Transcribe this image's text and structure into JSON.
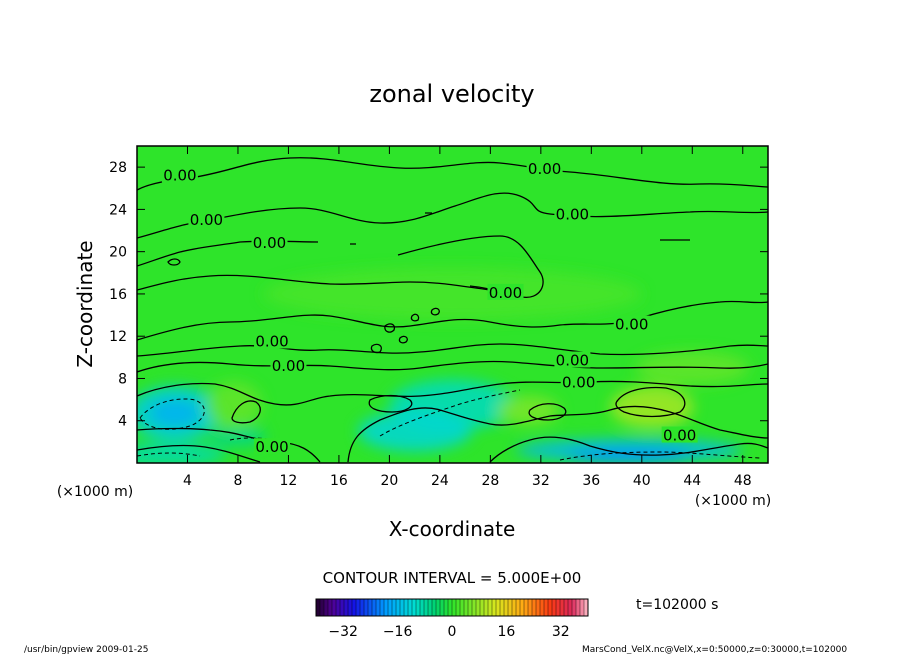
{
  "chart_data": {
    "type": "heatmap",
    "title": "zonal velocity",
    "xlabel": "X-coordinate",
    "ylabel": "Z-coordinate",
    "x_unit_left": "(×1000 m)",
    "x_unit_right": "(×1000 m)",
    "xlim": [
      0,
      50
    ],
    "ylim": [
      0,
      30
    ],
    "x_ticks": [
      4,
      8,
      12,
      16,
      20,
      24,
      28,
      32,
      36,
      40,
      44,
      48
    ],
    "y_ticks": [
      4,
      8,
      12,
      16,
      20,
      24,
      28
    ],
    "contour_interval_text": "CONTOUR INTERVAL = 5.000E+00",
    "time_text": "t=102000 s",
    "contour_labels": [
      {
        "text": "0.00",
        "x": 3.4,
        "y": 27.2
      },
      {
        "text": "0.00",
        "x": 5.5,
        "y": 23.0
      },
      {
        "text": "0.00",
        "x": 10.5,
        "y": 20.8
      },
      {
        "text": "0.00",
        "x": 32.3,
        "y": 27.8
      },
      {
        "text": "0.00",
        "x": 34.5,
        "y": 23.5
      },
      {
        "text": "0.00",
        "x": 29.2,
        "y": 16.1
      },
      {
        "text": "0.00",
        "x": 39.2,
        "y": 13.1
      },
      {
        "text": "0.00",
        "x": 10.7,
        "y": 11.5
      },
      {
        "text": "0.00",
        "x": 12.0,
        "y": 9.2
      },
      {
        "text": "0.00",
        "x": 34.5,
        "y": 9.7
      },
      {
        "text": "0.00",
        "x": 35.0,
        "y": 7.6
      },
      {
        "text": "0.00",
        "x": 43.0,
        "y": 2.6
      },
      {
        "text": "0.00",
        "x": 10.7,
        "y": 1.5
      }
    ],
    "field_blobs": [
      {
        "x": 3.0,
        "y": 4.7,
        "rx": 3.6,
        "ry": 2.6,
        "value": -13
      },
      {
        "x": 3.0,
        "y": 4.7,
        "rx": 2.0,
        "ry": 1.3,
        "value": -17
      },
      {
        "x": 2.5,
        "y": 0.8,
        "rx": 4.5,
        "ry": 1.1,
        "value": -9
      },
      {
        "x": 25.0,
        "y": 5.5,
        "rx": 5.0,
        "ry": 2.4,
        "value": -10
      },
      {
        "x": 22.0,
        "y": 3.0,
        "rx": 4.5,
        "ry": 1.9,
        "value": -12
      },
      {
        "x": 39.0,
        "y": 1.2,
        "rx": 9.0,
        "ry": 1.1,
        "value": -16
      },
      {
        "x": 39.0,
        "y": 0.6,
        "rx": 5.0,
        "ry": 0.7,
        "value": -20
      },
      {
        "x": 8.0,
        "y": 2.5,
        "rx": 2.2,
        "ry": 0.9,
        "value": -7
      },
      {
        "x": 31.0,
        "y": 5.0,
        "rx": 2.5,
        "ry": 1.4,
        "value": 6
      },
      {
        "x": 40.8,
        "y": 5.3,
        "rx": 3.3,
        "ry": 2.0,
        "value": 9
      },
      {
        "x": 7.7,
        "y": 5.5,
        "rx": 2.2,
        "ry": 2.2,
        "value": 4
      },
      {
        "x": 25.0,
        "y": 16.0,
        "rx": 15.0,
        "ry": 2.5,
        "value": 2
      },
      {
        "x": 44.0,
        "y": 9.0,
        "rx": 4.5,
        "ry": 1.6,
        "value": 4
      }
    ],
    "colorbar": {
      "min": -40,
      "max": 40,
      "tick_values": [
        -32,
        -16,
        0,
        16,
        32
      ],
      "tick_labels": [
        "−32",
        "−16",
        "0",
        "16",
        "32"
      ]
    }
  },
  "footer": {
    "left": "/usr/bin/gpview   2009-01-25",
    "right": "MarsCond_VelX.nc@VelX,x=0:50000,z=0:30000,t=102000"
  }
}
